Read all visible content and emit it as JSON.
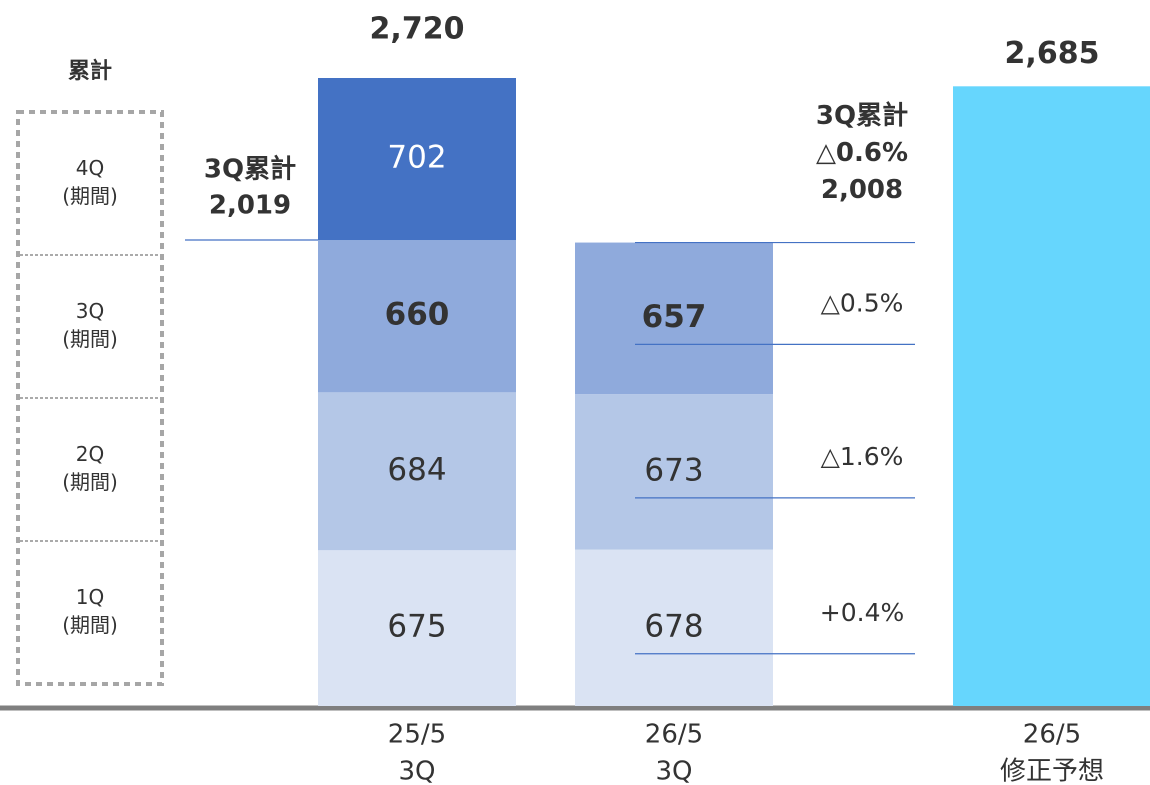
{
  "chart_data": {
    "type": "stacked_bar",
    "categories": [
      [
        "25/5",
        "3Q"
      ],
      [
        "26/5",
        "3Q"
      ],
      [
        "26/5",
        "修正予想"
      ]
    ],
    "legend_title": "累計",
    "series": [
      {
        "name": [
          "1Q",
          "(期間)"
        ],
        "color": "#dae3f3",
        "values": [
          675,
          678,
          null
        ]
      },
      {
        "name": [
          "2Q",
          "(期間)"
        ],
        "color": "#b4c7e7",
        "values": [
          684,
          673,
          null
        ]
      },
      {
        "name": [
          "3Q",
          "(期間)"
        ],
        "color": "#8faadc",
        "values": [
          660,
          657,
          null
        ],
        "label_bold": true
      },
      {
        "name": [
          "4Q",
          "(期間)"
        ],
        "color": "#4472c4",
        "values": [
          702,
          null,
          null
        ],
        "label_color": "#ffffff"
      }
    ],
    "forecast": {
      "color": "#66d6fd",
      "values": [
        null,
        null,
        2685
      ],
      "value_labels": [
        null,
        null,
        "2,685"
      ]
    },
    "totals": {
      "values": [
        2720,
        null,
        null
      ],
      "value_labels": [
        "2,720",
        null,
        null
      ]
    },
    "changes": [
      "+0.4%",
      "△1.6%",
      "△0.5%"
    ],
    "cumulative": [
      {
        "title": "3Q累計",
        "value": 2019,
        "value_label": "2,019"
      },
      {
        "title": "3Q累計",
        "change": "△0.6%",
        "value": 2008,
        "value_label": "2,008"
      }
    ]
  }
}
